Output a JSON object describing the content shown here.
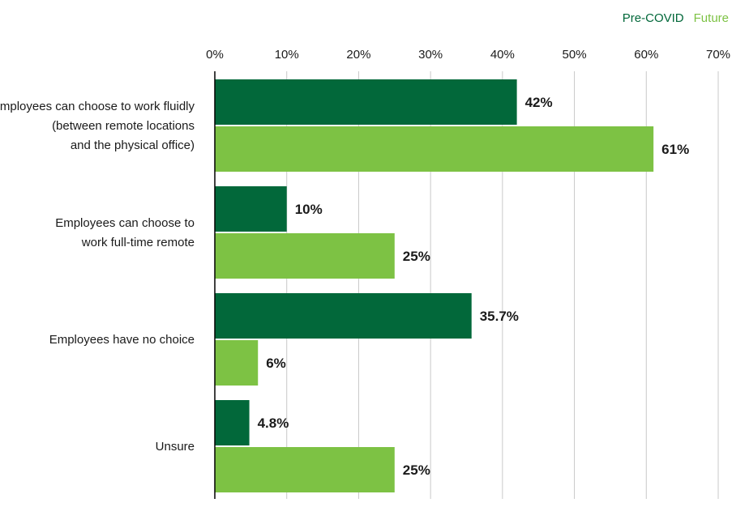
{
  "colors": {
    "pre_covid": "#02683a",
    "future": "#7dc244",
    "grid": "#c8c8c8",
    "axis": "#000000",
    "text": "#1a1a1a"
  },
  "legend": {
    "pre_covid": "Pre-COVID",
    "future": "Future",
    "placement": "top-right"
  },
  "chart_data": {
    "type": "bar",
    "orientation": "horizontal",
    "categories": [
      [
        "Employees can choose to work fluidly",
        "(between remote locations",
        "and the physical office)"
      ],
      [
        "Employees can choose to",
        "work full-time remote"
      ],
      [
        "Employees have no choice"
      ],
      [
        "Unsure"
      ]
    ],
    "series": [
      {
        "name": "Pre-COVID",
        "values": [
          42,
          10,
          35.7,
          4.8
        ],
        "labels": [
          "42%",
          "10%",
          "35.7%",
          "4.8%"
        ]
      },
      {
        "name": "Future",
        "values": [
          61,
          25,
          6,
          25
        ],
        "labels": [
          "61%",
          "25%",
          "6%",
          "25%"
        ]
      }
    ],
    "xlim": [
      0,
      70
    ],
    "ticks": [
      0,
      10,
      20,
      30,
      40,
      50,
      60,
      70
    ],
    "tick_labels": [
      "0%",
      "10%",
      "20%",
      "30%",
      "40%",
      "50%",
      "60%",
      "70%"
    ],
    "xlabel": "",
    "ylabel": "",
    "grid": true
  }
}
